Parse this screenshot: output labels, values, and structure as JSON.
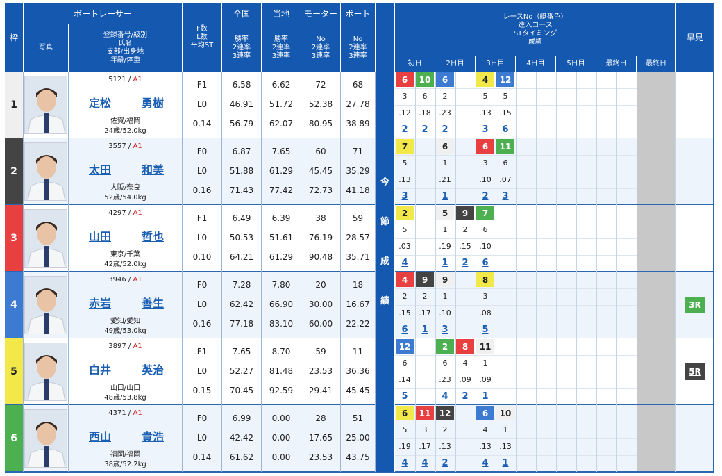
{
  "headers": {
    "waku": "枠",
    "photo": "写真",
    "racer": "ボートレーサー",
    "racer_info": [
      "登録番号/級別",
      "氏名",
      "支部/出身地",
      "年齢/体重"
    ],
    "f_info": [
      "F数",
      "L数",
      "平均ST"
    ],
    "zenkoku": "全国",
    "tochi": "当地",
    "motor": "モーター",
    "boat": "ボート",
    "rate_lines": [
      "勝率",
      "2連率",
      "3連率"
    ],
    "no_lines": [
      "No",
      "2連率",
      "3連率"
    ],
    "race_info": [
      "レースNo（艇番色）",
      "進入コース",
      "STタイミング",
      "成績"
    ],
    "days": [
      "初日",
      "2日目",
      "3日目",
      "4日目",
      "5日目",
      "最終日"
    ],
    "konsetsu": [
      "今",
      "節",
      "成",
      "績"
    ],
    "hayami": "早見"
  },
  "colors": {
    "1": "#ffffff",
    "2": "#444444",
    "3": "#e84040",
    "4": "#3d7bd2",
    "5": "#f2e84a",
    "6": "#4caf50"
  },
  "racers": [
    {
      "waku": "1",
      "reg": "5121",
      "cls": "A1",
      "sei": "定松",
      "mei": "勇樹",
      "branch": "佐賀/福岡",
      "age": "24歳/52.0kg",
      "f": "F1",
      "l": "L0",
      "avgst": "0.14",
      "zen": [
        "6.58",
        "46.91",
        "56.79"
      ],
      "toc": [
        "6.62",
        "51.72",
        "62.07"
      ],
      "mot": [
        "72",
        "52.38",
        "80.95"
      ],
      "boa": [
        "68",
        "27.78",
        "38.89"
      ],
      "races": [
        {
          "no": "6",
          "c": "3"
        },
        {
          "no": "10",
          "c": "6"
        },
        {
          "no": "6",
          "c": "4"
        },
        null,
        {
          "no": "4",
          "c": "5"
        },
        {
          "no": "12",
          "c": "4"
        }
      ],
      "course": [
        "3",
        "6",
        "2",
        "",
        "5",
        "5"
      ],
      "st": [
        ".12",
        ".18",
        ".23",
        "",
        ".13",
        ".15"
      ],
      "result": [
        "2",
        "2",
        "2",
        "",
        "3",
        "6"
      ],
      "hayami": ""
    },
    {
      "waku": "2",
      "reg": "3557",
      "cls": "A1",
      "sei": "太田",
      "mei": "和美",
      "branch": "大阪/奈良",
      "age": "52歳/54.0kg",
      "f": "F0",
      "l": "L0",
      "avgst": "0.16",
      "zen": [
        "6.87",
        "51.88",
        "71.43"
      ],
      "toc": [
        "7.65",
        "61.29",
        "77.42"
      ],
      "mot": [
        "60",
        "45.45",
        "72.73"
      ],
      "boa": [
        "71",
        "35.29",
        "41.18"
      ],
      "races": [
        {
          "no": "7",
          "c": "5"
        },
        null,
        {
          "no": "6",
          "c": "1"
        },
        null,
        {
          "no": "6",
          "c": "3"
        },
        {
          "no": "11",
          "c": "6"
        }
      ],
      "course": [
        "5",
        "",
        "1",
        "",
        "3",
        "6"
      ],
      "st": [
        ".13",
        "",
        ".21",
        "",
        ".10",
        ".07"
      ],
      "result": [
        "3",
        "",
        "1",
        "",
        "2",
        "3"
      ],
      "hayami": ""
    },
    {
      "waku": "3",
      "reg": "4297",
      "cls": "A1",
      "sei": "山田",
      "mei": "哲也",
      "branch": "東京/千葉",
      "age": "42歳/52.0kg",
      "f": "F1",
      "l": "L0",
      "avgst": "0.10",
      "zen": [
        "6.49",
        "50.53",
        "64.21"
      ],
      "toc": [
        "6.39",
        "51.61",
        "61.29"
      ],
      "mot": [
        "38",
        "76.19",
        "90.48"
      ],
      "boa": [
        "59",
        "28.57",
        "35.71"
      ],
      "races": [
        {
          "no": "2",
          "c": "5"
        },
        null,
        {
          "no": "5",
          "c": "1"
        },
        {
          "no": "9",
          "c": "2"
        },
        {
          "no": "7",
          "c": "6"
        },
        null
      ],
      "course": [
        "5",
        "",
        "1",
        "2",
        "6",
        ""
      ],
      "st": [
        ".03",
        "",
        ".19",
        ".15",
        ".10",
        ""
      ],
      "result": [
        "4",
        "",
        "1",
        "2",
        "6",
        ""
      ],
      "hayami": ""
    },
    {
      "waku": "4",
      "reg": "3946",
      "cls": "A1",
      "sei": "赤岩",
      "mei": "善生",
      "branch": "愛知/愛知",
      "age": "49歳/53.0kg",
      "f": "F0",
      "l": "L0",
      "avgst": "0.16",
      "zen": [
        "7.28",
        "62.42",
        "77.18"
      ],
      "toc": [
        "7.80",
        "66.90",
        "83.10"
      ],
      "mot": [
        "20",
        "30.00",
        "60.00"
      ],
      "boa": [
        "18",
        "16.67",
        "22.22"
      ],
      "races": [
        {
          "no": "4",
          "c": "3"
        },
        {
          "no": "9",
          "c": "2"
        },
        {
          "no": "9",
          "c": "1"
        },
        null,
        {
          "no": "8",
          "c": "5"
        },
        null
      ],
      "course": [
        "2",
        "2",
        "1",
        "",
        "3",
        ""
      ],
      "st": [
        ".15",
        ".17",
        ".10",
        "",
        ".08",
        ""
      ],
      "result": [
        "6",
        "1",
        "3",
        "",
        "5",
        ""
      ],
      "hayami": "3R",
      "hcolor": "#4caf50"
    },
    {
      "waku": "5",
      "reg": "3897",
      "cls": "A1",
      "sei": "白井",
      "mei": "英治",
      "branch": "山口/山口",
      "age": "48歳/53.8kg",
      "f": "F1",
      "l": "L0",
      "avgst": "0.15",
      "zen": [
        "7.65",
        "52.27",
        "70.45"
      ],
      "toc": [
        "8.70",
        "81.48",
        "92.59"
      ],
      "mot": [
        "59",
        "23.53",
        "29.41"
      ],
      "boa": [
        "11",
        "36.36",
        "45.45"
      ],
      "races": [
        {
          "no": "12",
          "c": "4"
        },
        null,
        {
          "no": "2",
          "c": "6"
        },
        {
          "no": "8",
          "c": "3"
        },
        {
          "no": "11",
          "c": "1"
        },
        null
      ],
      "course": [
        "6",
        "",
        "6",
        "4",
        "1",
        ""
      ],
      "st": [
        ".14",
        "",
        ".23",
        ".09",
        ".09",
        ""
      ],
      "result": [
        "5",
        "",
        "4",
        "2",
        "1",
        ""
      ],
      "hayami": "5R",
      "hcolor": "#444444"
    },
    {
      "waku": "6",
      "reg": "4371",
      "cls": "A1",
      "sei": "西山",
      "mei": "貴浩",
      "branch": "福岡/福岡",
      "age": "38歳/52.2kg",
      "f": "F0",
      "l": "L0",
      "avgst": "0.14",
      "zen": [
        "6.99",
        "42.42",
        "61.62"
      ],
      "toc": [
        "0.00",
        "0.00",
        "0.00"
      ],
      "mot": [
        "28",
        "17.65",
        "23.53"
      ],
      "boa": [
        "51",
        "25.00",
        "43.75"
      ],
      "races": [
        {
          "no": "6",
          "c": "5"
        },
        {
          "no": "11",
          "c": "3"
        },
        {
          "no": "12",
          "c": "2"
        },
        null,
        {
          "no": "6",
          "c": "4"
        },
        {
          "no": "10",
          "c": "1"
        }
      ],
      "course": [
        "5",
        "3",
        "2",
        "",
        "4",
        "1"
      ],
      "st": [
        ".19",
        ".17",
        ".13",
        "",
        ".13",
        ".13"
      ],
      "result": [
        "4",
        "4",
        "2",
        "",
        "4",
        "1"
      ],
      "hayami": ""
    }
  ]
}
